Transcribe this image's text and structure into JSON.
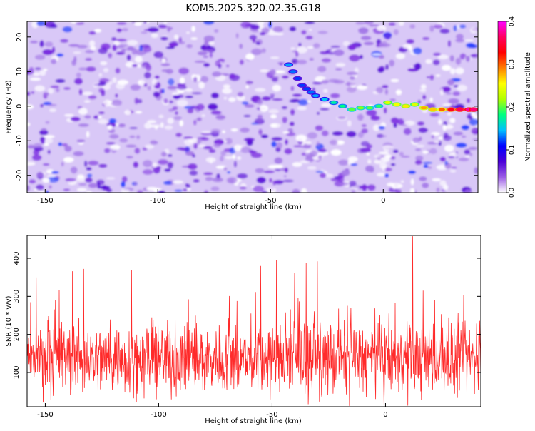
{
  "page": {
    "title": "KOM5.2025.320.02.35.G18"
  },
  "chart_data": [
    {
      "type": "heatmap",
      "title": "KOM5.2025.320.02.35.G18",
      "xlabel": "Height of straight line (km)",
      "ylabel": "Frequency (Hz)",
      "xlim": [
        -158,
        42
      ],
      "ylim": [
        -25,
        24.5
      ],
      "x_ticks": [
        -150,
        -100,
        -50,
        0
      ],
      "x_tick_labels": [
        "-150",
        "-100",
        "-50",
        "0"
      ],
      "y_ticks": [
        20,
        10,
        0,
        -10,
        -20
      ],
      "y_tick_labels": [
        "20",
        "10",
        "0",
        "-10",
        "-20"
      ],
      "colorbar": {
        "label": "Normalized spectral amplitude",
        "range": [
          0.0,
          0.4
        ],
        "ticks": [
          0.0,
          0.1,
          0.2,
          0.3,
          0.4
        ],
        "tick_labels": [
          "0.0",
          "0.1",
          "0.2",
          "0.3",
          "0.4"
        ],
        "colors": [
          "#ffffff",
          "#9b5de5",
          "#4b00d8",
          "#0000ff",
          "#00bfff",
          "#00ff80",
          "#b0ff00",
          "#ffff00",
          "#ff8000",
          "#ff0000",
          "#ff0060",
          "#ff00ff"
        ]
      },
      "track": {
        "x": [
          -42,
          -40,
          -38,
          -36,
          -34,
          -32,
          -30,
          -26,
          -22,
          -18,
          -14,
          -10,
          -6,
          -2,
          2,
          6,
          10,
          14,
          18,
          22,
          26,
          30,
          34,
          38,
          40
        ],
        "y": [
          12,
          10,
          8,
          6,
          5,
          4,
          3,
          2,
          1,
          0,
          -1,
          -0.5,
          -0.5,
          0,
          1,
          0.5,
          0,
          0.5,
          -0.5,
          -1,
          -1,
          -1,
          -1,
          -1,
          -1
        ],
        "amplitude": [
          0.14,
          0.13,
          0.12,
          0.12,
          0.12,
          0.13,
          0.14,
          0.15,
          0.17,
          0.18,
          0.2,
          0.21,
          0.2,
          0.19,
          0.24,
          0.25,
          0.26,
          0.24,
          0.28,
          0.27,
          0.3,
          0.34,
          0.36,
          0.38,
          0.37
        ]
      }
    },
    {
      "type": "line",
      "xlabel": "Height of straight line (km)",
      "ylabel": "SNR (10 * v/v)",
      "xlim": [
        -158,
        42
      ],
      "ylim": [
        10,
        460
      ],
      "x_ticks": [
        -150,
        -100,
        -50,
        0
      ],
      "x_tick_labels": [
        "-150",
        "-100",
        "-50",
        "0"
      ],
      "y_ticks": [
        100,
        200,
        300,
        400
      ],
      "y_tick_labels": [
        "100",
        "200",
        "300",
        "400"
      ],
      "color": "#ff2b2b",
      "baseline": 135,
      "spread": 70,
      "peaks": [
        {
          "x": 12,
          "y": 458
        },
        {
          "x": -48,
          "y": 395
        },
        {
          "x": -30,
          "y": 392
        },
        {
          "x": -35,
          "y": 387
        },
        {
          "x": -55,
          "y": 380
        },
        {
          "x": -133,
          "y": 372
        },
        {
          "x": -112,
          "y": 370
        },
        {
          "x": -138,
          "y": 366
        },
        {
          "x": -40,
          "y": 362
        },
        {
          "x": -154,
          "y": 350
        }
      ]
    }
  ]
}
